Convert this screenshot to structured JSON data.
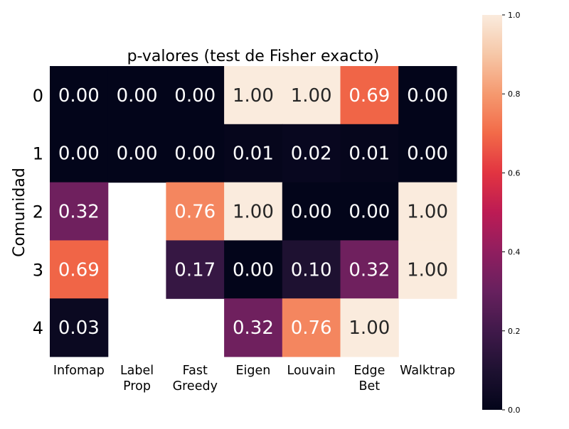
{
  "chart_data": {
    "type": "heatmap",
    "title": "p-valores (test de Fisher exacto)",
    "xlabel": "",
    "ylabel": "Comunidad",
    "x_categories": [
      [
        "Infomap"
      ],
      [
        "Label",
        "Prop"
      ],
      [
        "Fast",
        "Greedy"
      ],
      [
        "Eigen"
      ],
      [
        "Louvain"
      ],
      [
        "Edge",
        "Bet"
      ],
      [
        "Walktrap"
      ]
    ],
    "y_categories": [
      "0",
      "1",
      "2",
      "3",
      "4"
    ],
    "values": [
      [
        0.0,
        0.0,
        0.0,
        1.0,
        1.0,
        0.69,
        0.0
      ],
      [
        0.0,
        0.0,
        0.0,
        0.01,
        0.02,
        0.01,
        0.0
      ],
      [
        0.32,
        null,
        0.76,
        1.0,
        0.0,
        0.0,
        1.0
      ],
      [
        0.69,
        null,
        0.17,
        0.0,
        0.1,
        0.32,
        1.0
      ],
      [
        0.03,
        null,
        null,
        0.32,
        0.76,
        1.0,
        null
      ]
    ],
    "value_format": "2 decimals",
    "colormap": "rocket",
    "vmin": 0,
    "vmax": 1,
    "colorbar_ticks": [
      "0.0",
      "0.2",
      "0.4",
      "0.6",
      "0.8",
      "1.0"
    ],
    "colorbar_tick_values": [
      0.0,
      0.2,
      0.4,
      0.6,
      0.8,
      1.0
    ],
    "colorbar_position": "right",
    "grid": false
  }
}
